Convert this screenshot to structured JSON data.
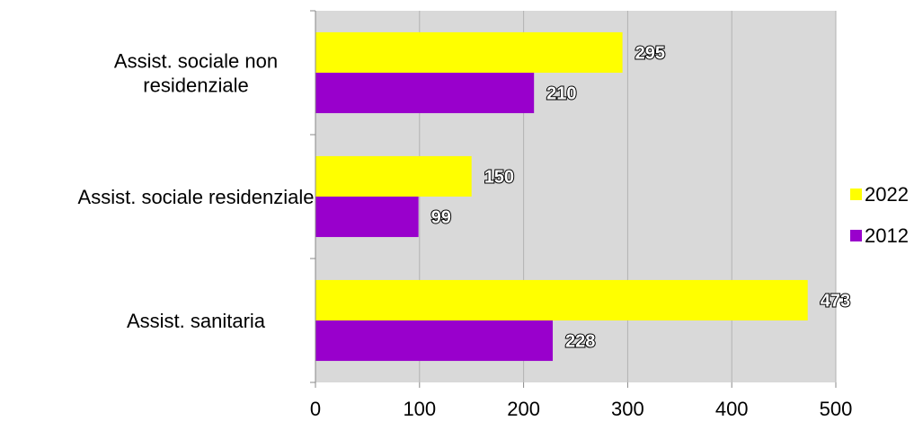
{
  "chart_data": {
    "type": "bar",
    "orientation": "horizontal",
    "categories": [
      "Assist. sociale non residenziale",
      "Assist. sociale residenziale",
      "Assist. sanitaria"
    ],
    "category_lines": [
      [
        "Assist. sociale non",
        "residenziale"
      ],
      [
        "Assist. sociale residenziale"
      ],
      [
        "Assist. sanitaria"
      ]
    ],
    "series": [
      {
        "name": "2022",
        "values": [
          295,
          150,
          473
        ],
        "color": "#ffff00"
      },
      {
        "name": "2012",
        "values": [
          210,
          99,
          228
        ],
        "color": "#9900cc"
      }
    ],
    "xlim": [
      0,
      500
    ],
    "xticks": [
      0,
      100,
      200,
      300,
      400,
      500
    ],
    "grid": true,
    "plot_background": "#d9d9d9",
    "gridline_color": "#b3b3b3",
    "legend_position": "right",
    "data_labels": true
  }
}
